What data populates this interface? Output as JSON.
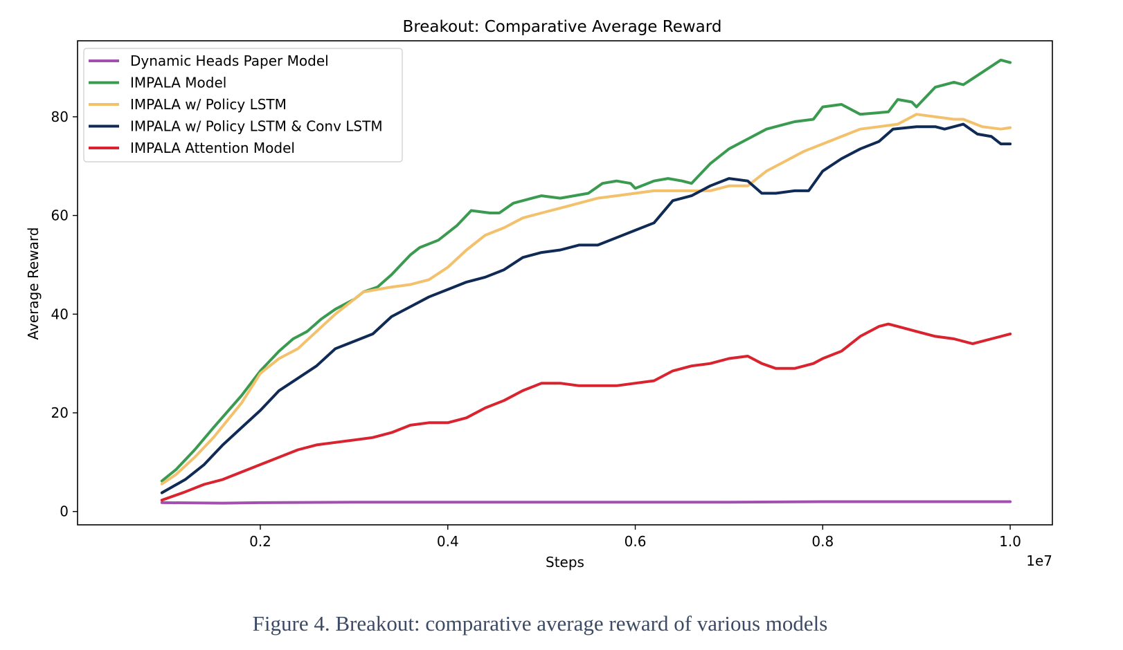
{
  "figure": {
    "caption": "Figure 4. Breakout: comparative average reward of various models"
  },
  "chart_data": {
    "type": "line",
    "title": "Breakout: Comparative Average Reward",
    "xlabel": "Steps",
    "ylabel": "Average Reward",
    "x_offset_label": "1e7",
    "x_scale": 10000000,
    "xlim": [
      50000,
      10450000
    ],
    "ylim": [
      -2.7,
      95.4
    ],
    "xticks": [
      2000000,
      4000000,
      6000000,
      8000000,
      10000000
    ],
    "xtick_labels": [
      "0.2",
      "0.4",
      "0.6",
      "0.8",
      "1.0"
    ],
    "yticks": [
      0,
      20,
      40,
      60,
      80
    ],
    "ytick_labels": [
      "0",
      "20",
      "40",
      "60",
      "80"
    ],
    "grid": false,
    "legend_position": "top-left",
    "series": [
      {
        "name": "Dynamic Heads Paper Model",
        "color": "#a150b0",
        "points": [
          [
            950000,
            1.8
          ],
          [
            1600000,
            1.7
          ],
          [
            2000000,
            1.8
          ],
          [
            3000000,
            1.9
          ],
          [
            4000000,
            1.9
          ],
          [
            5000000,
            1.9
          ],
          [
            6000000,
            1.9
          ],
          [
            7000000,
            1.9
          ],
          [
            8000000,
            2.0
          ],
          [
            9000000,
            2.0
          ],
          [
            10000000,
            2.0
          ]
        ]
      },
      {
        "name": "IMPALA Model",
        "color": "#3a9b50",
        "points": [
          [
            950000,
            6.2
          ],
          [
            1100000,
            8.5
          ],
          [
            1300000,
            12.5
          ],
          [
            1500000,
            17
          ],
          [
            1800000,
            23.5
          ],
          [
            2000000,
            28.5
          ],
          [
            2200000,
            32.5
          ],
          [
            2350000,
            35
          ],
          [
            2500000,
            36.5
          ],
          [
            2650000,
            39
          ],
          [
            2800000,
            41
          ],
          [
            3000000,
            43
          ],
          [
            3100000,
            44.5
          ],
          [
            3250000,
            45.5
          ],
          [
            3400000,
            48
          ],
          [
            3600000,
            52
          ],
          [
            3700000,
            53.5
          ],
          [
            3900000,
            55
          ],
          [
            4100000,
            58
          ],
          [
            4250000,
            61
          ],
          [
            4450000,
            60.5
          ],
          [
            4550000,
            60.5
          ],
          [
            4700000,
            62.5
          ],
          [
            4900000,
            63.5
          ],
          [
            5000000,
            64
          ],
          [
            5200000,
            63.5
          ],
          [
            5500000,
            64.5
          ],
          [
            5650000,
            66.5
          ],
          [
            5800000,
            67
          ],
          [
            5950000,
            66.5
          ],
          [
            6000000,
            65.5
          ],
          [
            6200000,
            67
          ],
          [
            6350000,
            67.5
          ],
          [
            6500000,
            67
          ],
          [
            6600000,
            66.5
          ],
          [
            6800000,
            70.5
          ],
          [
            7000000,
            73.5
          ],
          [
            7200000,
            75.5
          ],
          [
            7400000,
            77.5
          ],
          [
            7700000,
            79
          ],
          [
            7900000,
            79.5
          ],
          [
            8000000,
            82
          ],
          [
            8200000,
            82.5
          ],
          [
            8400000,
            80.5
          ],
          [
            8700000,
            81
          ],
          [
            8800000,
            83.5
          ],
          [
            8950000,
            83
          ],
          [
            9000000,
            82
          ],
          [
            9200000,
            86
          ],
          [
            9400000,
            87
          ],
          [
            9500000,
            86.5
          ],
          [
            9700000,
            89
          ],
          [
            9900000,
            91.5
          ],
          [
            10000000,
            91
          ]
        ]
      },
      {
        "name": "IMPALA w/ Policy LSTM",
        "color": "#f3c06b",
        "points": [
          [
            950000,
            5.6
          ],
          [
            1100000,
            7.5
          ],
          [
            1300000,
            11
          ],
          [
            1500000,
            15
          ],
          [
            1800000,
            22
          ],
          [
            2000000,
            28
          ],
          [
            2200000,
            31
          ],
          [
            2400000,
            33
          ],
          [
            2600000,
            36.5
          ],
          [
            2800000,
            40
          ],
          [
            3000000,
            43
          ],
          [
            3100000,
            44.5
          ],
          [
            3250000,
            45
          ],
          [
            3400000,
            45.5
          ],
          [
            3600000,
            46
          ],
          [
            3800000,
            47
          ],
          [
            4000000,
            49.5
          ],
          [
            4200000,
            53
          ],
          [
            4400000,
            56
          ],
          [
            4600000,
            57.5
          ],
          [
            4800000,
            59.5
          ],
          [
            5000000,
            60.5
          ],
          [
            5200000,
            61.5
          ],
          [
            5400000,
            62.5
          ],
          [
            5600000,
            63.5
          ],
          [
            5800000,
            64
          ],
          [
            6000000,
            64.5
          ],
          [
            6200000,
            65
          ],
          [
            6400000,
            65
          ],
          [
            6600000,
            65
          ],
          [
            6800000,
            65
          ],
          [
            7000000,
            66
          ],
          [
            7200000,
            66
          ],
          [
            7400000,
            69
          ],
          [
            7600000,
            71
          ],
          [
            7800000,
            73
          ],
          [
            8000000,
            74.5
          ],
          [
            8200000,
            76
          ],
          [
            8400000,
            77.5
          ],
          [
            8600000,
            78
          ],
          [
            8800000,
            78.5
          ],
          [
            9000000,
            80.5
          ],
          [
            9200000,
            80
          ],
          [
            9400000,
            79.5
          ],
          [
            9500000,
            79.5
          ],
          [
            9700000,
            78
          ],
          [
            9900000,
            77.5
          ],
          [
            10000000,
            77.8
          ]
        ]
      },
      {
        "name": "IMPALA w/ Policy LSTM & Conv LSTM",
        "color": "#0e2a55",
        "points": [
          [
            950000,
            3.8
          ],
          [
            1200000,
            6.5
          ],
          [
            1400000,
            9.5
          ],
          [
            1600000,
            13.5
          ],
          [
            1800000,
            17
          ],
          [
            2000000,
            20.5
          ],
          [
            2200000,
            24.5
          ],
          [
            2400000,
            27
          ],
          [
            2600000,
            29.5
          ],
          [
            2800000,
            33
          ],
          [
            3000000,
            34.5
          ],
          [
            3200000,
            36
          ],
          [
            3400000,
            39.5
          ],
          [
            3600000,
            41.5
          ],
          [
            3800000,
            43.5
          ],
          [
            4000000,
            45
          ],
          [
            4200000,
            46.5
          ],
          [
            4400000,
            47.5
          ],
          [
            4600000,
            49
          ],
          [
            4800000,
            51.5
          ],
          [
            5000000,
            52.5
          ],
          [
            5200000,
            53
          ],
          [
            5400000,
            54
          ],
          [
            5600000,
            54
          ],
          [
            5800000,
            55.5
          ],
          [
            6000000,
            57
          ],
          [
            6200000,
            58.5
          ],
          [
            6400000,
            63
          ],
          [
            6600000,
            64
          ],
          [
            6800000,
            66
          ],
          [
            7000000,
            67.5
          ],
          [
            7200000,
            67
          ],
          [
            7350000,
            64.5
          ],
          [
            7500000,
            64.5
          ],
          [
            7700000,
            65
          ],
          [
            7850000,
            65
          ],
          [
            8000000,
            69
          ],
          [
            8200000,
            71.5
          ],
          [
            8400000,
            73.5
          ],
          [
            8600000,
            75
          ],
          [
            8750000,
            77.5
          ],
          [
            9000000,
            78
          ],
          [
            9200000,
            78
          ],
          [
            9300000,
            77.5
          ],
          [
            9500000,
            78.5
          ],
          [
            9650000,
            76.5
          ],
          [
            9800000,
            76
          ],
          [
            9900000,
            74.5
          ],
          [
            10000000,
            74.5
          ]
        ]
      },
      {
        "name": "IMPALA Attention Model",
        "color": "#d9232f",
        "points": [
          [
            950000,
            2.3
          ],
          [
            1200000,
            4
          ],
          [
            1400000,
            5.5
          ],
          [
            1600000,
            6.5
          ],
          [
            1800000,
            8
          ],
          [
            2000000,
            9.5
          ],
          [
            2200000,
            11
          ],
          [
            2400000,
            12.5
          ],
          [
            2600000,
            13.5
          ],
          [
            2800000,
            14
          ],
          [
            3000000,
            14.5
          ],
          [
            3200000,
            15
          ],
          [
            3400000,
            16
          ],
          [
            3600000,
            17.5
          ],
          [
            3800000,
            18
          ],
          [
            4000000,
            18
          ],
          [
            4200000,
            19
          ],
          [
            4400000,
            21
          ],
          [
            4600000,
            22.5
          ],
          [
            4800000,
            24.5
          ],
          [
            5000000,
            26
          ],
          [
            5200000,
            26
          ],
          [
            5400000,
            25.5
          ],
          [
            5600000,
            25.5
          ],
          [
            5800000,
            25.5
          ],
          [
            6000000,
            26
          ],
          [
            6200000,
            26.5
          ],
          [
            6400000,
            28.5
          ],
          [
            6600000,
            29.5
          ],
          [
            6800000,
            30
          ],
          [
            7000000,
            31
          ],
          [
            7200000,
            31.5
          ],
          [
            7350000,
            30
          ],
          [
            7500000,
            29
          ],
          [
            7700000,
            29
          ],
          [
            7900000,
            30
          ],
          [
            8000000,
            31
          ],
          [
            8200000,
            32.5
          ],
          [
            8400000,
            35.5
          ],
          [
            8600000,
            37.5
          ],
          [
            8700000,
            38
          ],
          [
            8800000,
            37.5
          ],
          [
            9000000,
            36.5
          ],
          [
            9200000,
            35.5
          ],
          [
            9400000,
            35
          ],
          [
            9600000,
            34
          ],
          [
            9800000,
            35
          ],
          [
            10000000,
            36
          ]
        ]
      }
    ]
  }
}
